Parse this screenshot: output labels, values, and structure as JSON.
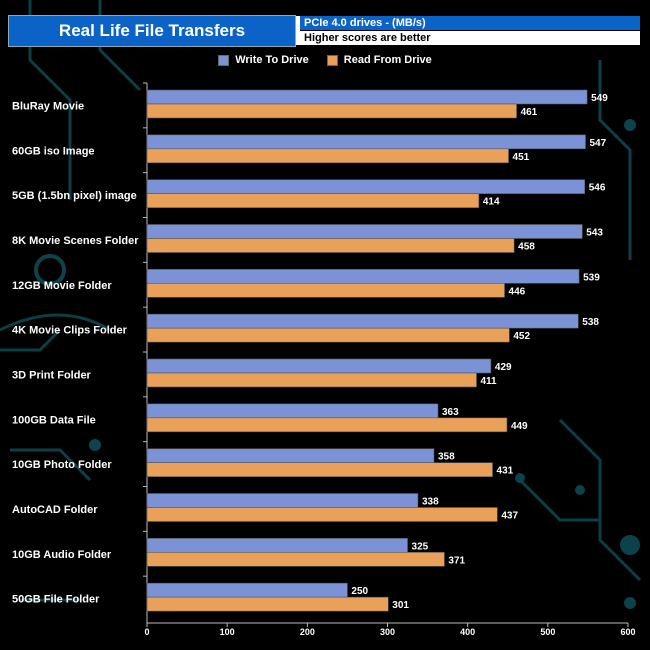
{
  "header": {
    "title": "Real Life File Transfers",
    "subtitle": "PCIe 4.0 drives - (MB/s)",
    "note": "Higher scores are better"
  },
  "colors": {
    "write": "#7b93d6",
    "read": "#e9a15a",
    "accent": "#0b63c8"
  },
  "chart_data": {
    "type": "bar",
    "orientation": "horizontal",
    "title": "Real Life File Transfers",
    "categories": [
      "BluRay Movie",
      "60GB iso Image",
      "5GB (1.5bn pixel) image",
      "8K Movie Scenes Folder",
      "12GB Movie Folder",
      "4K Movie Clips Folder",
      "3D Print Folder",
      "100GB Data File",
      "10GB Photo Folder",
      "AutoCAD Folder",
      "10GB Audio Folder",
      "50GB File Folder"
    ],
    "series": [
      {
        "name": "Write To  Drive",
        "values": [
          549,
          547,
          546,
          543,
          539,
          538,
          429,
          363,
          358,
          338,
          325,
          250
        ]
      },
      {
        "name": "Read From  Drive",
        "values": [
          461,
          451,
          414,
          458,
          446,
          452,
          411,
          449,
          431,
          437,
          371,
          301
        ]
      }
    ],
    "xlim": [
      0,
      600
    ],
    "xticks": [
      0,
      100,
      200,
      300,
      400,
      500,
      600
    ],
    "legend": "top"
  }
}
